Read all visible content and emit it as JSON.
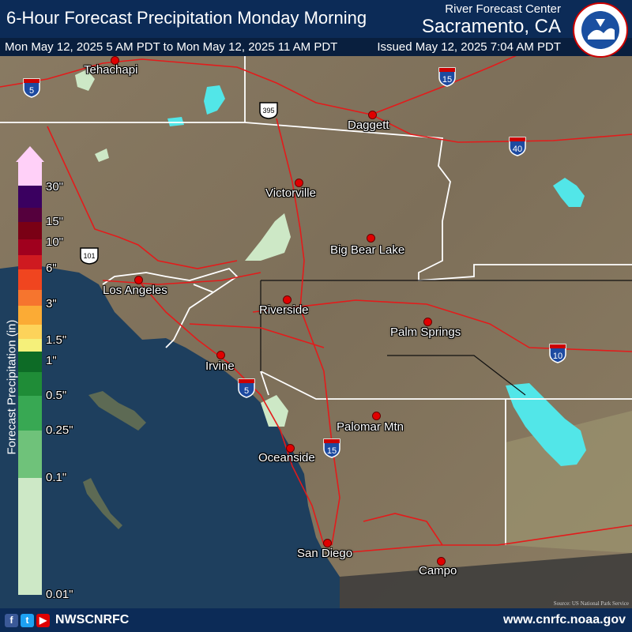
{
  "header": {
    "title": "6-Hour Forecast Precipitation Monday Morning",
    "center_label": "River Forecast Center",
    "center_name": "Sacramento, CA",
    "valid_period": "Mon May 12, 2025 5 AM PDT to Mon May 12, 2025 11 AM PDT",
    "issued": "Issued May 12, 2025 7:04 AM PDT",
    "logo_text": "NATIONAL WEATHER SERVICE"
  },
  "legend": {
    "title": "Forecast Precipitation (in)",
    "ticks": [
      "30\"",
      "15\"",
      "10\"",
      "6\"",
      "3\"",
      "1.5\"",
      "1\"",
      "0.5\"",
      "0.25\"",
      "0.1\"",
      "0.01\""
    ],
    "colors": [
      "#ffd0f8",
      "#3a0060",
      "#55003d",
      "#7a0015",
      "#a0001e",
      "#cf1a20",
      "#f0451f",
      "#f6752e",
      "#fbab35",
      "#fdd35a",
      "#f5f07a",
      "#0d6b26",
      "#1f8c37",
      "#38a853",
      "#6fc27a",
      "#a8d9a6",
      "#cde8c6"
    ]
  },
  "cities": [
    {
      "name": "Tehachapi"
    },
    {
      "name": "Daggett"
    },
    {
      "name": "Victorville"
    },
    {
      "name": "Big Bear Lake"
    },
    {
      "name": "Los Angeles"
    },
    {
      "name": "Riverside"
    },
    {
      "name": "Palm Springs"
    },
    {
      "name": "Irvine"
    },
    {
      "name": "Palomar Mtn"
    },
    {
      "name": "Oceanside"
    },
    {
      "name": "San Diego"
    },
    {
      "name": "Campo"
    }
  ],
  "highways": [
    "5",
    "15",
    "395",
    "40",
    "101",
    "10",
    "5",
    "15"
  ],
  "footer": {
    "handle": "NWSCNRFC",
    "website": "www.cnrfc.noaa.gov",
    "social_icons": [
      "facebook-icon",
      "twitter-icon",
      "youtube-icon"
    ]
  },
  "source_note": "Source: US National Park Service",
  "map_colors": {
    "land": "#8a7a62",
    "ocean": "#1e3f5e",
    "light_precip": "#cde8c6",
    "water": "#52e6e8",
    "roads": "#e31b1b",
    "borders": "#ffffff"
  }
}
